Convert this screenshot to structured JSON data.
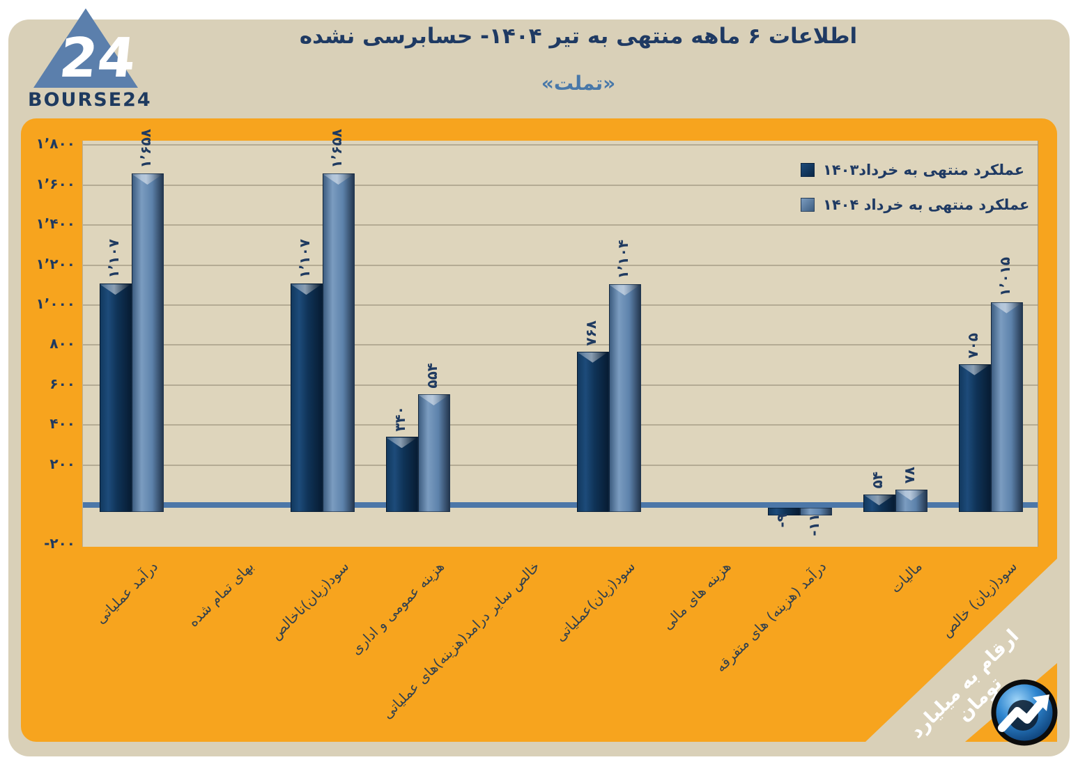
{
  "header": {
    "title": "اطلاعات ۶ ماهه منتهی به تیر  ۱۴۰۴- حسابرسی نشده",
    "subtitle": "«تملت»"
  },
  "brand": {
    "logo_number": "24",
    "logo_text": "BOURSE24"
  },
  "footnote": {
    "unit_note": "ارقام به میلیارد تومان"
  },
  "colors": {
    "panel_orange": "#f7a41e",
    "card_beige": "#d9d0b8",
    "plot_beige": "#ded5bc",
    "series_1403": "#0f3357",
    "series_1404": "#5d82ab",
    "zero_line": "#4c77a8",
    "text_navy": "#1f3a63"
  },
  "chart_data": {
    "type": "bar",
    "title": "اطلاعات ۶ ماهه منتهی به تیر  ۱۴۰۴- حسابرسی نشده",
    "subtitle": "«تملت»",
    "unit_note": "ارقام به میلیارد تومان",
    "legend_position": "top-right-inside",
    "grid": true,
    "ylim": [
      -200,
      1822
    ],
    "y_ticks": [
      {
        "value": 1800,
        "label": "۱٬۸۰۰"
      },
      {
        "value": 1600,
        "label": "۱٬۶۰۰"
      },
      {
        "value": 1400,
        "label": "۱٬۴۰۰"
      },
      {
        "value": 1200,
        "label": "۱٬۲۰۰"
      },
      {
        "value": 1000,
        "label": "۱٬۰۰۰"
      },
      {
        "value": 800,
        "label": "۸۰۰"
      },
      {
        "value": 600,
        "label": "۶۰۰"
      },
      {
        "value": 400,
        "label": "۴۰۰"
      },
      {
        "value": 200,
        "label": "۲۰۰"
      },
      {
        "value": -200,
        "label": "-۲۰۰"
      }
    ],
    "categories": [
      "درآمد عملیاتی",
      "بهای تمام شده",
      "سود(زیان)ناخالص",
      "هزینه عمومی و اداری",
      "خالص سایر درامد(هزینه)های عملیاتی",
      "سود(زیان)عملیاتی",
      "هزینه های مالی",
      "درآمد (هزینه) های متفرقه",
      "مالیات",
      "سود(زیان) خالص"
    ],
    "series": [
      {
        "name": "عملکرد منتهی به خرداد۱۴۰۳",
        "color": "#0f3357",
        "values": [
          1107,
          null,
          1107,
          340,
          null,
          768,
          null,
          -9,
          54,
          705
        ],
        "labels": [
          "۱٬۱۰۷",
          "",
          "۱٬۱۰۷",
          "۳۴۰",
          "",
          "۷۶۸",
          "",
          "-۹",
          "۵۴",
          "۷۰۵"
        ]
      },
      {
        "name": "عملکرد منتهی به خرداد ۱۴۰۴",
        "color": "#5d82ab",
        "values": [
          1658,
          null,
          1658,
          554,
          null,
          1104,
          null,
          -11,
          78,
          1015
        ],
        "labels": [
          "۱٬۶۵۸",
          "",
          "۱٬۶۵۸",
          "۵۵۴",
          "",
          "۱٬۱۰۴",
          "",
          "-۱۱",
          "۷۸",
          "۱٬۰۱۵"
        ]
      }
    ]
  }
}
